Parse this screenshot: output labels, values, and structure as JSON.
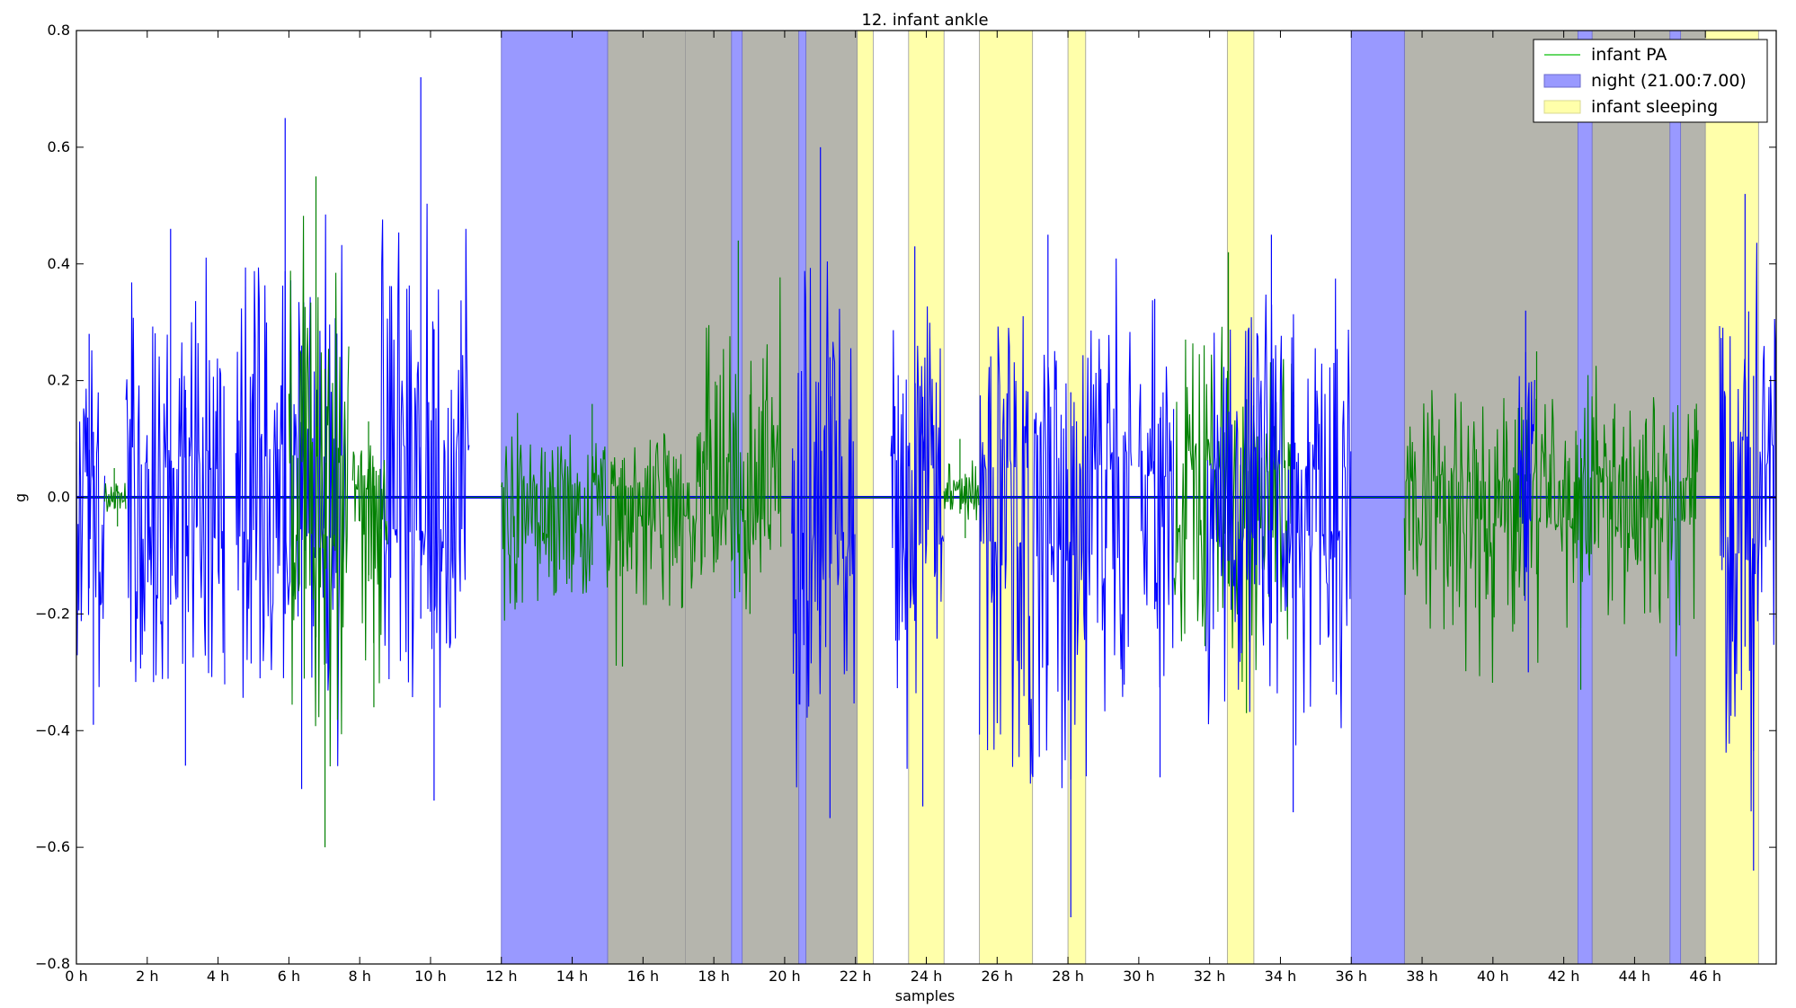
{
  "chart_data": {
    "type": "line",
    "title": "12. infant ankle",
    "xlabel": "samples",
    "ylabel": "g",
    "xlim": [
      0,
      48
    ],
    "ylim": [
      -0.8,
      0.8
    ],
    "x_unit": "h",
    "x_tick_labels": [
      "0 h",
      "2 h",
      "4 h",
      "6 h",
      "8 h",
      "10 h",
      "12 h",
      "14 h",
      "16 h",
      "18 h",
      "20 h",
      "22 h",
      "24 h",
      "26 h",
      "28 h",
      "30 h",
      "32 h",
      "34 h",
      "36 h",
      "38 h",
      "40 h",
      "42 h",
      "44 h",
      "46 h"
    ],
    "y_tick_labels": [
      "0.8",
      "0.6",
      "0.4",
      "0.2",
      "0.0",
      "−0.2",
      "−0.4",
      "−0.6",
      "−0.8"
    ],
    "y_ticks": [
      0.8,
      0.6,
      0.4,
      0.2,
      0.0,
      -0.2,
      -0.4,
      -0.6,
      -0.8
    ],
    "legend": {
      "placement": "top-right",
      "entries": [
        "infant PA",
        "night (21.00:7.00)",
        "infant sleeping"
      ]
    },
    "colors": {
      "infant_pa": "#008000",
      "signal": "#0000ff",
      "night": "#9999ff",
      "sleeping": "#ffffaa",
      "overlap": "#b5b5ad",
      "legend_pa_swatch": "#33cc33"
    },
    "night_periods": [
      [
        12.0,
        15.0
      ],
      [
        18.5,
        18.8
      ],
      [
        20.4,
        20.6
      ],
      [
        36.0,
        37.5
      ],
      [
        42.4,
        42.8
      ],
      [
        45.0,
        45.3
      ]
    ],
    "sleeping_periods": [
      [
        15.0,
        17.2
      ],
      [
        17.2,
        18.5
      ],
      [
        18.8,
        20.4
      ],
      [
        20.6,
        22.05
      ],
      [
        22.05,
        22.5
      ],
      [
        23.5,
        24.5
      ],
      [
        25.5,
        27.0
      ],
      [
        28.0,
        28.5
      ],
      [
        32.5,
        33.25
      ],
      [
        37.5,
        42.4
      ],
      [
        42.8,
        45.0
      ],
      [
        45.3,
        46.0
      ],
      [
        46.0,
        47.5
      ]
    ],
    "activity_bursts": [
      {
        "series": "signal",
        "start": 0.0,
        "end": 0.8,
        "max": 0.28,
        "min": -0.39
      },
      {
        "series": "infant PA",
        "start": 0.8,
        "end": 1.4,
        "max": 0.05,
        "min": -0.05
      },
      {
        "series": "signal",
        "start": 1.4,
        "end": 4.2,
        "max": 0.46,
        "min": -0.46
      },
      {
        "series": "signal",
        "start": 4.5,
        "end": 7.6,
        "max": 0.65,
        "min": -0.5
      },
      {
        "series": "infant PA",
        "start": 6.0,
        "end": 7.7,
        "max": 0.55,
        "min": -0.6
      },
      {
        "series": "signal",
        "start": 8.6,
        "end": 11.1,
        "max": 0.72,
        "min": -0.52
      },
      {
        "series": "infant PA",
        "start": 7.8,
        "end": 8.8,
        "max": 0.13,
        "min": -0.36
      },
      {
        "series": "infant PA",
        "start": 12.0,
        "end": 17.7,
        "max": 0.16,
        "min": -0.29
      },
      {
        "series": "infant PA",
        "start": 17.7,
        "end": 19.9,
        "max": 0.44,
        "min": -0.2
      },
      {
        "series": "signal",
        "start": 20.2,
        "end": 22.0,
        "max": 0.6,
        "min": -0.55
      },
      {
        "series": "signal",
        "start": 23.0,
        "end": 24.5,
        "max": 0.43,
        "min": -0.53
      },
      {
        "series": "infant PA",
        "start": 24.5,
        "end": 25.5,
        "max": 0.1,
        "min": -0.07
      },
      {
        "series": "signal",
        "start": 25.5,
        "end": 29.8,
        "max": 0.45,
        "min": -0.72
      },
      {
        "series": "signal",
        "start": 30.0,
        "end": 31.0,
        "max": 0.34,
        "min": -0.48
      },
      {
        "series": "infant PA",
        "start": 31.0,
        "end": 34.4,
        "max": 0.42,
        "min": -0.37
      },
      {
        "series": "signal",
        "start": 31.9,
        "end": 36.0,
        "max": 0.45,
        "min": -0.54
      },
      {
        "series": "infant PA",
        "start": 37.5,
        "end": 45.8,
        "max": 0.25,
        "min": -0.33
      },
      {
        "series": "signal",
        "start": 40.7,
        "end": 41.2,
        "max": 0.32,
        "min": -0.3
      },
      {
        "series": "signal",
        "start": 46.4,
        "end": 48.0,
        "max": 0.52,
        "min": -0.64
      }
    ]
  }
}
